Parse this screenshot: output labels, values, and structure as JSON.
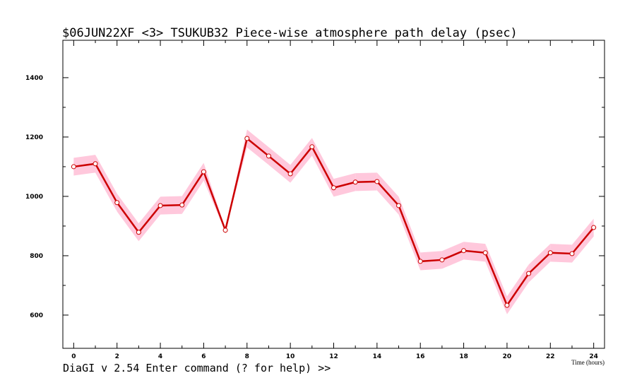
{
  "chart_data": {
    "type": "line",
    "title": "$06JUN22XF <3>  TSUKUB32  Piece-wise atmosphere path delay (psec)",
    "x_label": "Time (hours)",
    "x": [
      0,
      1,
      2,
      3,
      4,
      5,
      6,
      7,
      8,
      9,
      10,
      11,
      12,
      13,
      14,
      15,
      16,
      17,
      18,
      19,
      20,
      21,
      22,
      23,
      24
    ],
    "series": [
      {
        "color": "#cc0000",
        "band_color": "#ffc8dc",
        "values": [
          1100,
          1110,
          979,
          879,
          969,
          971,
          1083,
          886,
          1195,
          1136,
          1076,
          1167,
          1029,
          1048,
          1050,
          969,
          781,
          786,
          817,
          810,
          633,
          740,
          810,
          807,
          895
        ],
        "errors": [
          30,
          30,
          30,
          30,
          30,
          30,
          30,
          5,
          30,
          30,
          30,
          30,
          30,
          30,
          30,
          30,
          30,
          30,
          30,
          30,
          30,
          30,
          30,
          30,
          30
        ]
      }
    ],
    "xlim": [
      -0.5,
      24.5
    ],
    "ylim": [
      488,
      1526
    ],
    "xticks": [
      0,
      2,
      4,
      6,
      8,
      10,
      12,
      14,
      16,
      18,
      20,
      22,
      24
    ],
    "yticks": [
      600,
      800,
      1000,
      1200,
      1400
    ]
  },
  "status_line": "DiaGI v 2.54  Enter command (? for help) >>"
}
